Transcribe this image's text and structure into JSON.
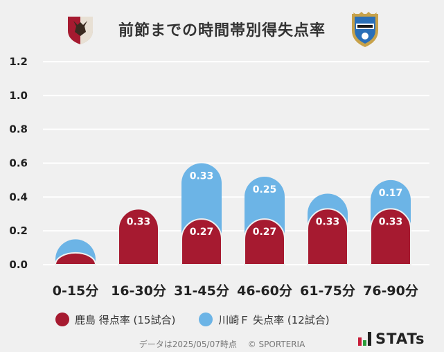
{
  "header": {
    "title": "前節までの時間帯別得失点率",
    "left_logo": "kashima-antlers-crest-icon",
    "right_logo": "kawasaki-frontale-crest-icon"
  },
  "colors": {
    "kashima": "#a61a30",
    "kawasaki": "#6cb4e6",
    "background": "#f0f0f0"
  },
  "chart_data": {
    "type": "bar",
    "categories": [
      "0-15分",
      "16-30分",
      "31-45分",
      "46-60分",
      "61-75分",
      "76-90分"
    ],
    "series": [
      {
        "name": "川崎Ｆ 失点率 (12試合)",
        "values": [
          0.15,
          0.0,
          0.6,
          0.52,
          0.42,
          0.5
        ],
        "labels": [
          "",
          "",
          "0.33",
          "0.25",
          "",
          "0.17"
        ]
      },
      {
        "name": "鹿島 得点率 (15試合)",
        "values": [
          0.07,
          0.33,
          0.27,
          0.27,
          0.33,
          0.33
        ],
        "labels": [
          "",
          "0.33",
          "0.27",
          "0.27",
          "0.33",
          "0.33"
        ]
      }
    ],
    "yticks": [
      "0.0",
      "0.2",
      "0.4",
      "0.6",
      "0.8",
      "1.0",
      "1.2"
    ],
    "ylim": [
      0,
      1.2
    ],
    "grid": true,
    "legend_position": "bottom-left"
  },
  "legend": {
    "items": [
      {
        "label": "鹿島 得点率 (15試合)"
      },
      {
        "label": "川崎Ｆ 失点率 (12試合)"
      }
    ]
  },
  "footer": {
    "date_text": "データは2025/05/07時点",
    "copyright": "© SPORTERIA"
  },
  "brand": {
    "name": "STATs"
  }
}
